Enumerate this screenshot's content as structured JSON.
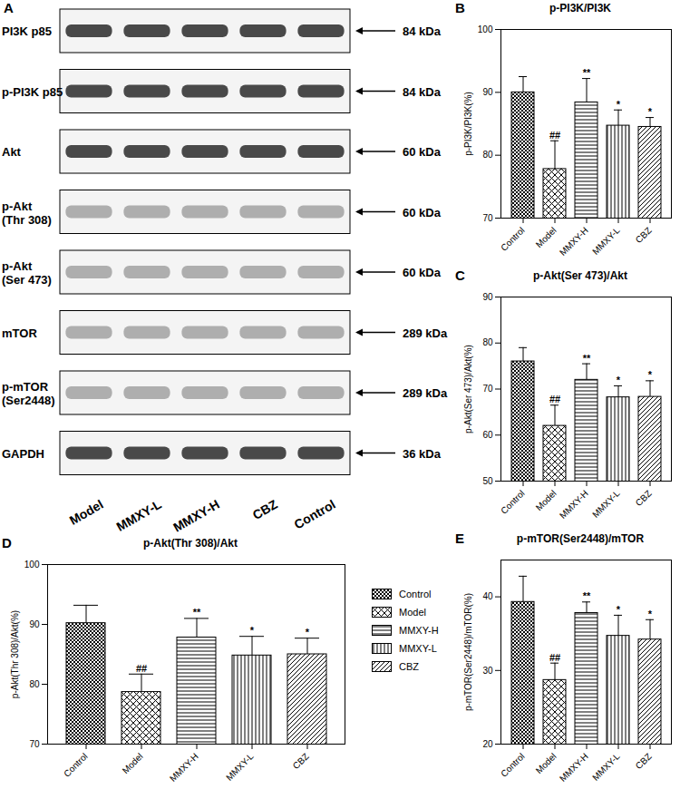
{
  "blot": {
    "panel": "A",
    "rows": [
      {
        "label": [
          "PI3K p85"
        ],
        "kda": "84 kDa"
      },
      {
        "label": [
          "p-PI3K p85"
        ],
        "kda": "84 kDa"
      },
      {
        "label": [
          "Akt"
        ],
        "kda": "60 kDa"
      },
      {
        "label": [
          "p-Akt",
          "(Thr 308)"
        ],
        "kda": "60 kDa"
      },
      {
        "label": [
          "p-Akt",
          "(Ser 473)"
        ],
        "kda": "60 kDa"
      },
      {
        "label": [
          "mTOR"
        ],
        "kda": "289 kDa"
      },
      {
        "label": [
          "p-mTOR",
          "(Ser2448)"
        ],
        "kda": "289 kDa"
      },
      {
        "label": [
          "GAPDH"
        ],
        "kda": "36 kDa"
      }
    ],
    "lanes": [
      "Model",
      "MMXY-L",
      "MMXY-H",
      "CBZ",
      "Control"
    ]
  },
  "chart_data": [
    {
      "type": "bar",
      "panel": "B",
      "title": "p-PI3K/PI3K",
      "ylabel": "p-PI3K/PI3K(%)",
      "categories": [
        "Control",
        "Model",
        "MMXY-H",
        "MMXY-L",
        "CBZ"
      ],
      "values": [
        90.0,
        77.8,
        88.4,
        84.7,
        84.5
      ],
      "errors": [
        2.5,
        4.5,
        3.8,
        2.5,
        1.5
      ],
      "significance": [
        null,
        "##",
        "**",
        "*",
        "*"
      ],
      "color": "#000000",
      "ylim": [
        70,
        100
      ],
      "yticks": [
        70,
        80,
        90,
        100
      ]
    },
    {
      "type": "bar",
      "panel": "C",
      "title": "p-Akt(Ser 473)/Akt",
      "ylabel": "p-Akt(Ser 473)/Akt(%)",
      "categories": [
        "Control",
        "Model",
        "MMXY-H",
        "MMXY-L",
        "CBZ"
      ],
      "values": [
        76.0,
        62.0,
        72.0,
        68.2,
        68.3
      ],
      "errors": [
        3.0,
        4.5,
        3.5,
        2.5,
        3.5
      ],
      "significance": [
        null,
        "##",
        "**",
        "*",
        "*"
      ],
      "color": "#000000",
      "ylim": [
        50,
        90
      ],
      "yticks": [
        50,
        60,
        70,
        80,
        90
      ]
    },
    {
      "type": "bar",
      "panel": "D",
      "title": "p-Akt(Thr 308)/Akt",
      "ylabel": "p-Akt(Thr 308)/Akt(%)",
      "categories": [
        "Control",
        "Model",
        "MMXY-H",
        "MMXY-L",
        "CBZ"
      ],
      "values": [
        90.2,
        78.7,
        87.8,
        84.8,
        85.0
      ],
      "errors": [
        3.0,
        3.0,
        3.2,
        3.2,
        2.7
      ],
      "significance": [
        null,
        "##",
        "**",
        "*",
        "*"
      ],
      "color": "#000000",
      "ylim": [
        70,
        100
      ],
      "yticks": [
        70,
        80,
        90,
        100
      ],
      "legend": "right"
    },
    {
      "type": "bar",
      "panel": "E",
      "title": "p-mTOR(Ser2448)/mTOR",
      "ylabel": "p-mTOR(Ser2448)/mTOR(%)",
      "categories": [
        "Control",
        "Model",
        "MMXY-H",
        "MMXY-L",
        "CBZ"
      ],
      "values": [
        39.3,
        28.7,
        37.8,
        34.7,
        34.2
      ],
      "errors": [
        3.5,
        2.3,
        1.5,
        2.8,
        2.7
      ],
      "significance": [
        null,
        "##",
        "**",
        "*",
        "*"
      ],
      "color": "#000000",
      "ylim": [
        20,
        45
      ],
      "yticks": [
        20,
        30,
        40
      ]
    }
  ]
}
